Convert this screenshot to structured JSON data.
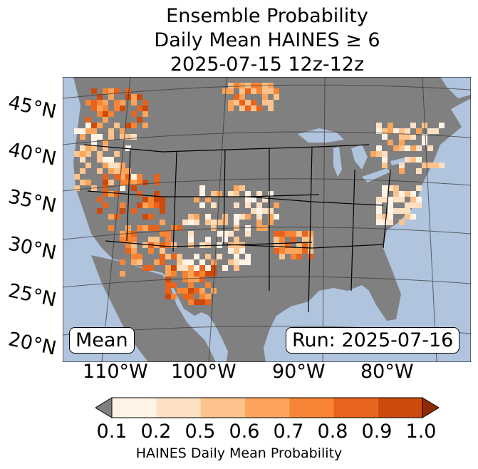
{
  "title": {
    "line1": "Ensemble Probability",
    "line2": "Daily Mean HAINES ≥ 6",
    "line3": "2025-07-15 12z-12z"
  },
  "map": {
    "ocean_color": "#b0c4de",
    "land_color": "#808080",
    "lat_labels": [
      "45°N",
      "40°N",
      "35°N",
      "30°N",
      "25°N",
      "20°N"
    ],
    "lon_labels": [
      "110°W",
      "100°W",
      "90°W",
      "80°W"
    ]
  },
  "annotations": {
    "stat_label": "Mean",
    "run_label": "Run: 2025-07-16"
  },
  "colorbar": {
    "label": "HAINES Daily Mean Probability",
    "ticks": [
      "0.1",
      "0.2",
      "0.5",
      "0.6",
      "0.7",
      "0.8",
      "0.9",
      "1.0"
    ],
    "colors": [
      "#fff3e6",
      "#fde0c2",
      "#fdc38d",
      "#fca55a",
      "#f78434",
      "#e8631c",
      "#cc4a0c"
    ],
    "under_color": "#808080",
    "over_color": "#8f2a05"
  }
}
